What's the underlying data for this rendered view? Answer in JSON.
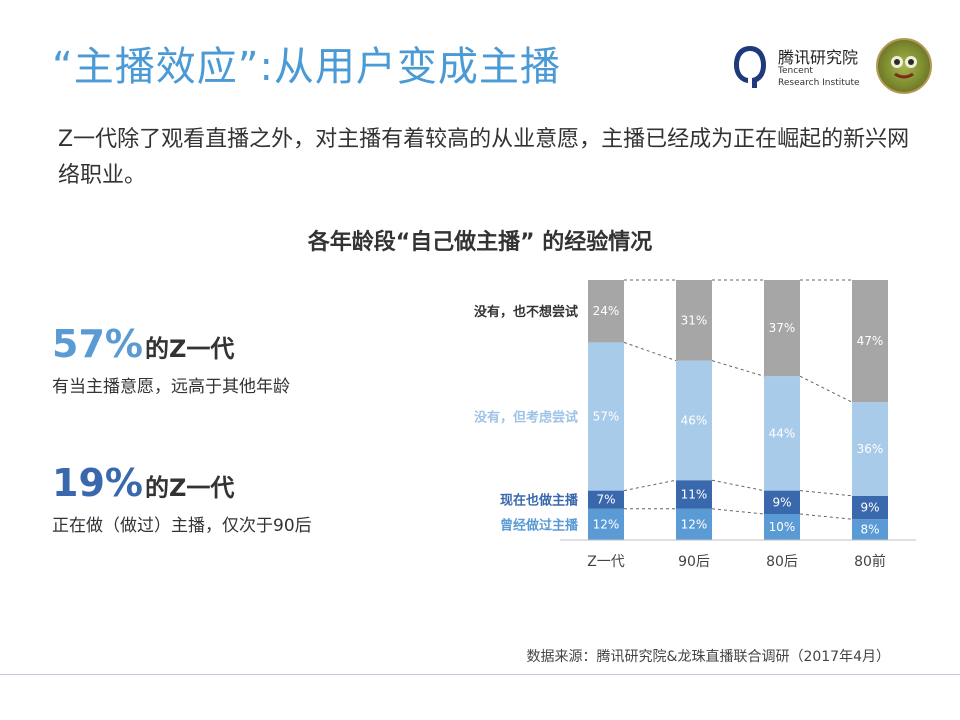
{
  "header": {
    "title": "“主播效应”:从用户变成主播",
    "logo": {
      "cn_name": "腾讯研究院",
      "en_line1": "Tencent",
      "en_line2": "Research Institute"
    }
  },
  "description": "Z一代除了观看直播之外，对主播有着较高的从业意愿，主播已经成为正在崛起的新兴网络职业。",
  "stats": [
    {
      "value": "57%",
      "suffix": "的Z一代",
      "desc": "有当主播意愿，远高于其他年龄",
      "color": "#5b9bd5"
    },
    {
      "value": "19%",
      "suffix": "的Z一代",
      "desc": "正在做（做过）主播，仅次于90后",
      "color": "#3a68ad"
    }
  ],
  "chart_data": {
    "type": "bar",
    "stacked": true,
    "title": "各年龄段“自己做主播” 的经验情况",
    "categories": [
      "Z一代",
      "90后",
      "80后",
      "80前"
    ],
    "series": [
      {
        "name": "曾经做过主播",
        "values": [
          12,
          12,
          10,
          8
        ],
        "color": "#5b9bd5",
        "label_color": "#5b9bd5"
      },
      {
        "name": "现在也做主播",
        "values": [
          7,
          11,
          9,
          9
        ],
        "color": "#3a68ad",
        "label_color": "#3a68ad"
      },
      {
        "name": "没有，但考虑尝试",
        "values": [
          57,
          46,
          44,
          36
        ],
        "color": "#a8cbe9",
        "label_color": "#9dc3e6"
      },
      {
        "name": "没有，也不想尝试",
        "values": [
          24,
          31,
          37,
          47
        ],
        "color": "#a6a6a6",
        "label_color": "#333333"
      }
    ],
    "value_labels": [
      [
        "12%",
        "12%",
        "10%",
        "8%"
      ],
      [
        "7%",
        "11%",
        "9%",
        "9%"
      ],
      [
        "57%",
        "46%",
        "44%",
        "36%"
      ],
      [
        "24%",
        "31%",
        "37%",
        "47%"
      ]
    ],
    "ylim": [
      0,
      100
    ],
    "legend_position": "left",
    "connector_lines": "dashed"
  },
  "footer": {
    "source": "数据来源：腾讯研究院&龙珠直播联合调研（2017年4月）"
  }
}
